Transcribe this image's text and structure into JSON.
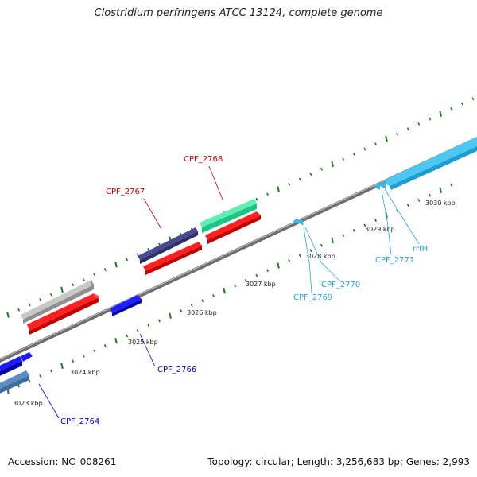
{
  "title": "Clostridium perfringens ATCC 13124, complete genome",
  "footer": {
    "accession": "Accession: NC_008261",
    "summary": "Topology: circular; Length: 3,256,683 bp; Genes: 2,993"
  },
  "colors": {
    "backbone": "#8a8a8a",
    "tick": "#1f7a1f",
    "red_label": "#cc0000",
    "blue_label": "#0000cc",
    "cyan_label": "#2aa8d8"
  },
  "scale": {
    "kbp_labels": [
      "3023 kbp",
      "3024 kbp",
      "3025 kbp",
      "3026 kbp",
      "3027 kbp",
      "3028 kbp",
      "3029 kbp",
      "3030 kbp"
    ]
  },
  "gene_labels": [
    {
      "id": "cpf2764",
      "text": "CPF_2764",
      "color": "blue"
    },
    {
      "id": "cpf2766",
      "text": "CPF_2766",
      "color": "blue"
    },
    {
      "id": "cpf2767",
      "text": "CPF_2767",
      "color": "red"
    },
    {
      "id": "cpf2768",
      "text": "CPF_2768",
      "color": "red"
    },
    {
      "id": "cpf2769",
      "text": "CPF_2769",
      "color": "cyan"
    },
    {
      "id": "cpf2770",
      "text": "CPF_2770",
      "color": "cyan"
    },
    {
      "id": "cpf2771",
      "text": "CPF_2771",
      "color": "cyan"
    },
    {
      "id": "rrfh",
      "text": "rrfH",
      "color": "cyan"
    }
  ]
}
